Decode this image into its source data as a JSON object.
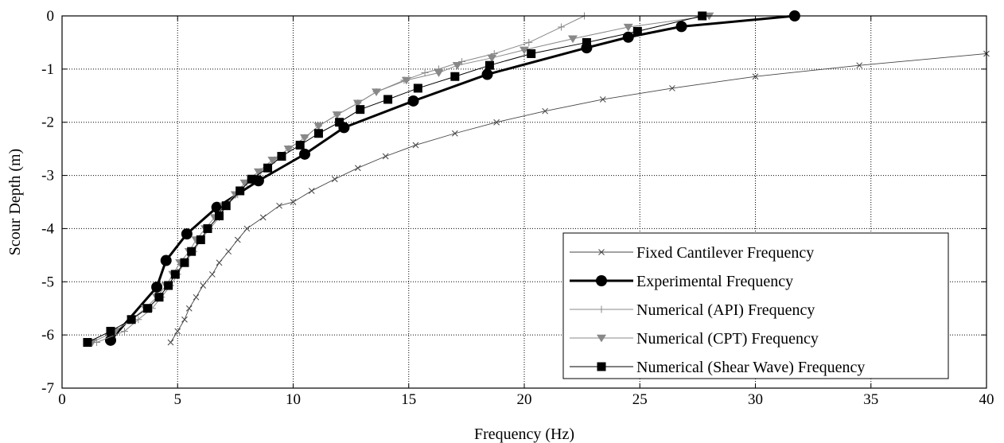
{
  "chart_data": {
    "type": "line",
    "title": "",
    "xlabel": "Frequency (Hz)",
    "ylabel": "Scour Depth (m)",
    "xlim": [
      0,
      40
    ],
    "ylim": [
      -7,
      0
    ],
    "xticks": [
      0,
      5,
      10,
      15,
      20,
      25,
      30,
      35,
      40
    ],
    "yticks": [
      0,
      -1,
      -2,
      -3,
      -4,
      -5,
      -6,
      -7
    ],
    "xtick_labels": [
      "0",
      "5",
      "10",
      "15",
      "20",
      "25",
      "30",
      "35",
      "40"
    ],
    "ytick_labels": [
      "0",
      "-1",
      "-2",
      "-3",
      "-4",
      "-5",
      "-6",
      "-7"
    ],
    "grid": true,
    "legend_position": "bottom-right",
    "series": [
      {
        "name": "Fixed Cantilever Frequency",
        "color": "#444444",
        "line_width": 0.9,
        "marker": "x",
        "points": [
          [
            4.7,
            -6.14
          ],
          [
            5.0,
            -5.93
          ],
          [
            5.3,
            -5.71
          ],
          [
            5.5,
            -5.5
          ],
          [
            5.8,
            -5.29
          ],
          [
            6.1,
            -5.07
          ],
          [
            6.5,
            -4.86
          ],
          [
            6.8,
            -4.64
          ],
          [
            7.2,
            -4.43
          ],
          [
            7.6,
            -4.21
          ],
          [
            8.0,
            -4.0
          ],
          [
            8.7,
            -3.79
          ],
          [
            9.4,
            -3.57
          ],
          [
            10.0,
            -3.5
          ],
          [
            10.8,
            -3.29
          ],
          [
            11.8,
            -3.07
          ],
          [
            12.8,
            -2.86
          ],
          [
            14.0,
            -2.64
          ],
          [
            15.3,
            -2.43
          ],
          [
            17.0,
            -2.21
          ],
          [
            18.8,
            -2.0
          ],
          [
            20.9,
            -1.79
          ],
          [
            23.4,
            -1.57
          ],
          [
            26.4,
            -1.36
          ],
          [
            30.0,
            -1.14
          ],
          [
            34.5,
            -0.93
          ],
          [
            40.0,
            -0.71
          ]
        ]
      },
      {
        "name": "Experimental Frequency",
        "color": "#000000",
        "line_width": 3,
        "marker": "circle",
        "points": [
          [
            2.1,
            -6.1
          ],
          [
            4.1,
            -5.1
          ],
          [
            4.5,
            -4.6
          ],
          [
            5.4,
            -4.1
          ],
          [
            6.7,
            -3.6
          ],
          [
            8.5,
            -3.1
          ],
          [
            10.5,
            -2.6
          ],
          [
            12.2,
            -2.1
          ],
          [
            15.2,
            -1.6
          ],
          [
            18.4,
            -1.1
          ],
          [
            22.7,
            -0.6
          ],
          [
            24.5,
            -0.4
          ],
          [
            26.8,
            -0.2
          ],
          [
            31.7,
            0.0
          ]
        ]
      },
      {
        "name": "Numerical (API) Frequency",
        "color": "#888888",
        "line_width": 1,
        "marker": "plus",
        "points": [
          [
            1.5,
            -6.14
          ],
          [
            2.7,
            -5.93
          ],
          [
            3.3,
            -5.71
          ],
          [
            3.9,
            -5.5
          ],
          [
            4.3,
            -5.29
          ],
          [
            4.7,
            -5.07
          ],
          [
            5.0,
            -4.86
          ],
          [
            5.3,
            -4.64
          ],
          [
            5.7,
            -4.43
          ],
          [
            6.0,
            -4.21
          ],
          [
            6.4,
            -4.0
          ],
          [
            6.8,
            -3.79
          ],
          [
            7.1,
            -3.57
          ],
          [
            7.6,
            -3.36
          ],
          [
            8.0,
            -3.14
          ],
          [
            8.6,
            -2.93
          ],
          [
            9.2,
            -2.71
          ],
          [
            9.8,
            -2.5
          ],
          [
            10.5,
            -2.29
          ],
          [
            11.1,
            -2.07
          ],
          [
            11.9,
            -1.86
          ],
          [
            12.8,
            -1.64
          ],
          [
            13.6,
            -1.43
          ],
          [
            14.8,
            -1.21
          ],
          [
            15.7,
            -1.07
          ],
          [
            16.3,
            -1.0
          ],
          [
            17.3,
            -0.86
          ],
          [
            18.7,
            -0.71
          ],
          [
            20.2,
            -0.5
          ],
          [
            21.6,
            -0.21
          ],
          [
            22.6,
            0.0
          ]
        ]
      },
      {
        "name": "Numerical (CPT) Frequency",
        "color": "#888888",
        "line_width": 1,
        "marker": "triangle-down",
        "points": [
          [
            1.3,
            -6.14
          ],
          [
            2.3,
            -5.93
          ],
          [
            3.0,
            -5.71
          ],
          [
            3.6,
            -5.5
          ],
          [
            4.1,
            -5.29
          ],
          [
            4.5,
            -5.07
          ],
          [
            4.8,
            -4.86
          ],
          [
            5.1,
            -4.64
          ],
          [
            5.5,
            -4.43
          ],
          [
            5.8,
            -4.21
          ],
          [
            6.2,
            -4.0
          ],
          [
            6.6,
            -3.79
          ],
          [
            7.0,
            -3.57
          ],
          [
            7.5,
            -3.36
          ],
          [
            7.9,
            -3.14
          ],
          [
            8.5,
            -2.93
          ],
          [
            9.1,
            -2.71
          ],
          [
            9.8,
            -2.5
          ],
          [
            10.5,
            -2.29
          ],
          [
            11.1,
            -2.07
          ],
          [
            11.9,
            -1.86
          ],
          [
            12.8,
            -1.64
          ],
          [
            13.6,
            -1.43
          ],
          [
            14.9,
            -1.21
          ],
          [
            16.3,
            -1.07
          ],
          [
            17.1,
            -0.93
          ],
          [
            18.6,
            -0.79
          ],
          [
            20.0,
            -0.64
          ],
          [
            22.1,
            -0.43
          ],
          [
            24.5,
            -0.21
          ],
          [
            28.0,
            0.0
          ]
        ]
      },
      {
        "name": "Numerical (Shear Wave) Frequency",
        "color": "#000000",
        "line_width": 1,
        "marker": "square",
        "points": [
          [
            1.1,
            -6.14
          ],
          [
            2.1,
            -5.93
          ],
          [
            3.0,
            -5.71
          ],
          [
            3.7,
            -5.5
          ],
          [
            4.2,
            -5.29
          ],
          [
            4.6,
            -5.07
          ],
          [
            4.9,
            -4.86
          ],
          [
            5.3,
            -4.64
          ],
          [
            5.6,
            -4.43
          ],
          [
            6.0,
            -4.21
          ],
          [
            6.3,
            -4.0
          ],
          [
            6.8,
            -3.76
          ],
          [
            7.1,
            -3.57
          ],
          [
            7.7,
            -3.29
          ],
          [
            8.2,
            -3.07
          ],
          [
            8.9,
            -2.86
          ],
          [
            9.5,
            -2.64
          ],
          [
            10.3,
            -2.43
          ],
          [
            11.1,
            -2.21
          ],
          [
            12.0,
            -2.0
          ],
          [
            12.9,
            -1.76
          ],
          [
            14.1,
            -1.57
          ],
          [
            15.4,
            -1.36
          ],
          [
            17.0,
            -1.14
          ],
          [
            18.5,
            -0.93
          ],
          [
            20.3,
            -0.71
          ],
          [
            22.7,
            -0.5
          ],
          [
            24.9,
            -0.29
          ],
          [
            27.7,
            0.0
          ]
        ]
      }
    ]
  }
}
